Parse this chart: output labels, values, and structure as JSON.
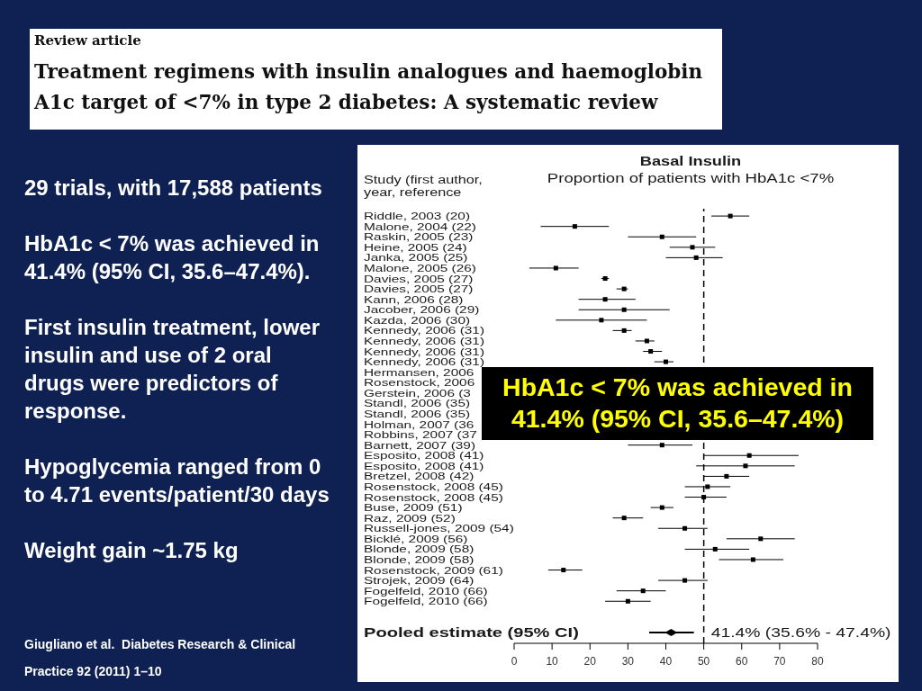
{
  "chart_data": {
    "type": "scatter",
    "orientation": "horizontal",
    "title": "Basal Insulin",
    "subtitle": "Proportion of patients with HbA1c <7%",
    "ylabel": "Study (first author, year, reference",
    "categories": [
      "Riddle, 2003 (20)",
      "Malone, 2004 (22)",
      "Raskin, 2005 (23)",
      "Heine, 2005 (24)",
      "Janka, 2005 (25)",
      "Malone, 2005 (26)",
      "Davies, 2005 (27)",
      "Davies, 2005 (27)",
      "Kann, 2006 (28)",
      "Jacober, 2006 (29)",
      "Kazda, 2006 (30)",
      "Kennedy, 2006 (31)",
      "Kennedy, 2006 (31)",
      "Kennedy, 2006 (31)",
      "Kennedy, 2006 (31)",
      "Hermansen, 2006",
      "Rosenstock, 2006",
      "Gerstein, 2006 (3",
      "Standl, 2006 (35)",
      "Standl, 2006 (35)",
      "Holman, 2007 (36",
      "Robbins, 2007 (37",
      "Barnett, 2007 (39)",
      "Esposito, 2008 (41)",
      "Esposito, 2008 (41)",
      "Bretzel, 2008 (42)",
      "Rosenstock, 2008 (45)",
      "Rosenstock, 2008 (45)",
      "Buse, 2009 (51)",
      "Raz, 2009 (52)",
      "Russell-jones, 2009 (54)",
      "Bicklé, 2009 (56)",
      "Blonde, 2009 (58)",
      "Blonde, 2009 (58)",
      "Rosenstock, 2009 (61)",
      "Strojek, 2009 (64)",
      "Fogelfeld, 2010 (66)",
      "Fogelfeld, 2010 (66)",
      "Pooled estimate (95% CI)"
    ],
    "series": [
      {
        "color": "#000000",
        "marker": "square",
        "values": [
          57,
          16,
          39,
          47,
          48,
          11,
          24,
          29,
          24,
          29,
          23,
          29,
          35,
          36,
          40,
          null,
          null,
          null,
          null,
          null,
          null,
          null,
          39,
          62,
          61,
          56,
          51,
          50,
          39,
          29,
          45,
          65,
          53,
          63,
          13,
          45,
          34,
          30,
          null
        ],
        "errors": [
          [
            52,
            62
          ],
          [
            7,
            25
          ],
          [
            30,
            48
          ],
          [
            41,
            53
          ],
          [
            40,
            55
          ],
          [
            4,
            17
          ],
          [
            23,
            25
          ],
          [
            27,
            30
          ],
          [
            17,
            32
          ],
          [
            17,
            41
          ],
          [
            11,
            35
          ],
          [
            26,
            31
          ],
          [
            32,
            37
          ],
          [
            34,
            39
          ],
          [
            37,
            42
          ],
          null,
          null,
          null,
          null,
          null,
          null,
          null,
          [
            30,
            47
          ],
          [
            50,
            75
          ],
          [
            48,
            74
          ],
          [
            50,
            62
          ],
          [
            45,
            57
          ],
          [
            45,
            56
          ],
          [
            36,
            42
          ],
          [
            26,
            34
          ],
          [
            38,
            51
          ],
          [
            56,
            74
          ],
          [
            45,
            62
          ],
          [
            54,
            71
          ],
          [
            9,
            18
          ],
          [
            38,
            51
          ],
          [
            27,
            40
          ],
          [
            24,
            36
          ],
          null
        ]
      },
      {
        "color": "#000000",
        "marker": "diamond",
        "values": [
          null,
          null,
          null,
          null,
          null,
          null,
          null,
          null,
          null,
          null,
          null,
          null,
          null,
          null,
          null,
          null,
          null,
          null,
          null,
          null,
          null,
          null,
          null,
          null,
          null,
          null,
          null,
          null,
          null,
          null,
          null,
          null,
          null,
          null,
          null,
          null,
          null,
          null,
          41.4
        ],
        "errors": [
          null,
          null,
          null,
          null,
          null,
          null,
          null,
          null,
          null,
          null,
          null,
          null,
          null,
          null,
          null,
          null,
          null,
          null,
          null,
          null,
          null,
          null,
          null,
          null,
          null,
          null,
          null,
          null,
          null,
          null,
          null,
          null,
          null,
          null,
          null,
          null,
          null,
          null,
          [
            35.6,
            47.4
          ]
        ],
        "value_labels": [
          null,
          null,
          null,
          null,
          null,
          null,
          null,
          null,
          null,
          null,
          null,
          null,
          null,
          null,
          null,
          null,
          null,
          null,
          null,
          null,
          null,
          null,
          null,
          null,
          null,
          null,
          null,
          null,
          null,
          null,
          null,
          null,
          null,
          null,
          null,
          null,
          null,
          null,
          "41.4% (35.6% - 47.4%)"
        ]
      }
    ],
    "xlim": [
      0,
      80
    ],
    "xticks": [
      0,
      10,
      20,
      30,
      40,
      50,
      60,
      70,
      80
    ],
    "ref_lines": [
      {
        "axis": "x",
        "value": 50,
        "line_style": "dashed"
      }
    ],
    "annotations": [
      "Review article",
      "Treatment regimens with insulin analogues and haemoglobin A1c target of <7% in type 2 diabetes: A systematic review",
      "29 trials, with 17,588 patients",
      "HbA1c < 7% was achieved in 41.4% (95% CI, 35.6–47.4%).",
      "First insulin treatment, lower insulin and use of 2 oral drugs were predictors of response.",
      "Hypoglycemia ranged from 0 to 4.71 events/patient/30 days",
      "Weight gain ~1.75 kg",
      "HbA1c < 7% was achieved in 41.4% (95% CI, 35.6–47.4%)",
      "Giugliano et al.  Diabetes Research & Clinical Practice 92 (2011) 1–10"
    ]
  }
}
